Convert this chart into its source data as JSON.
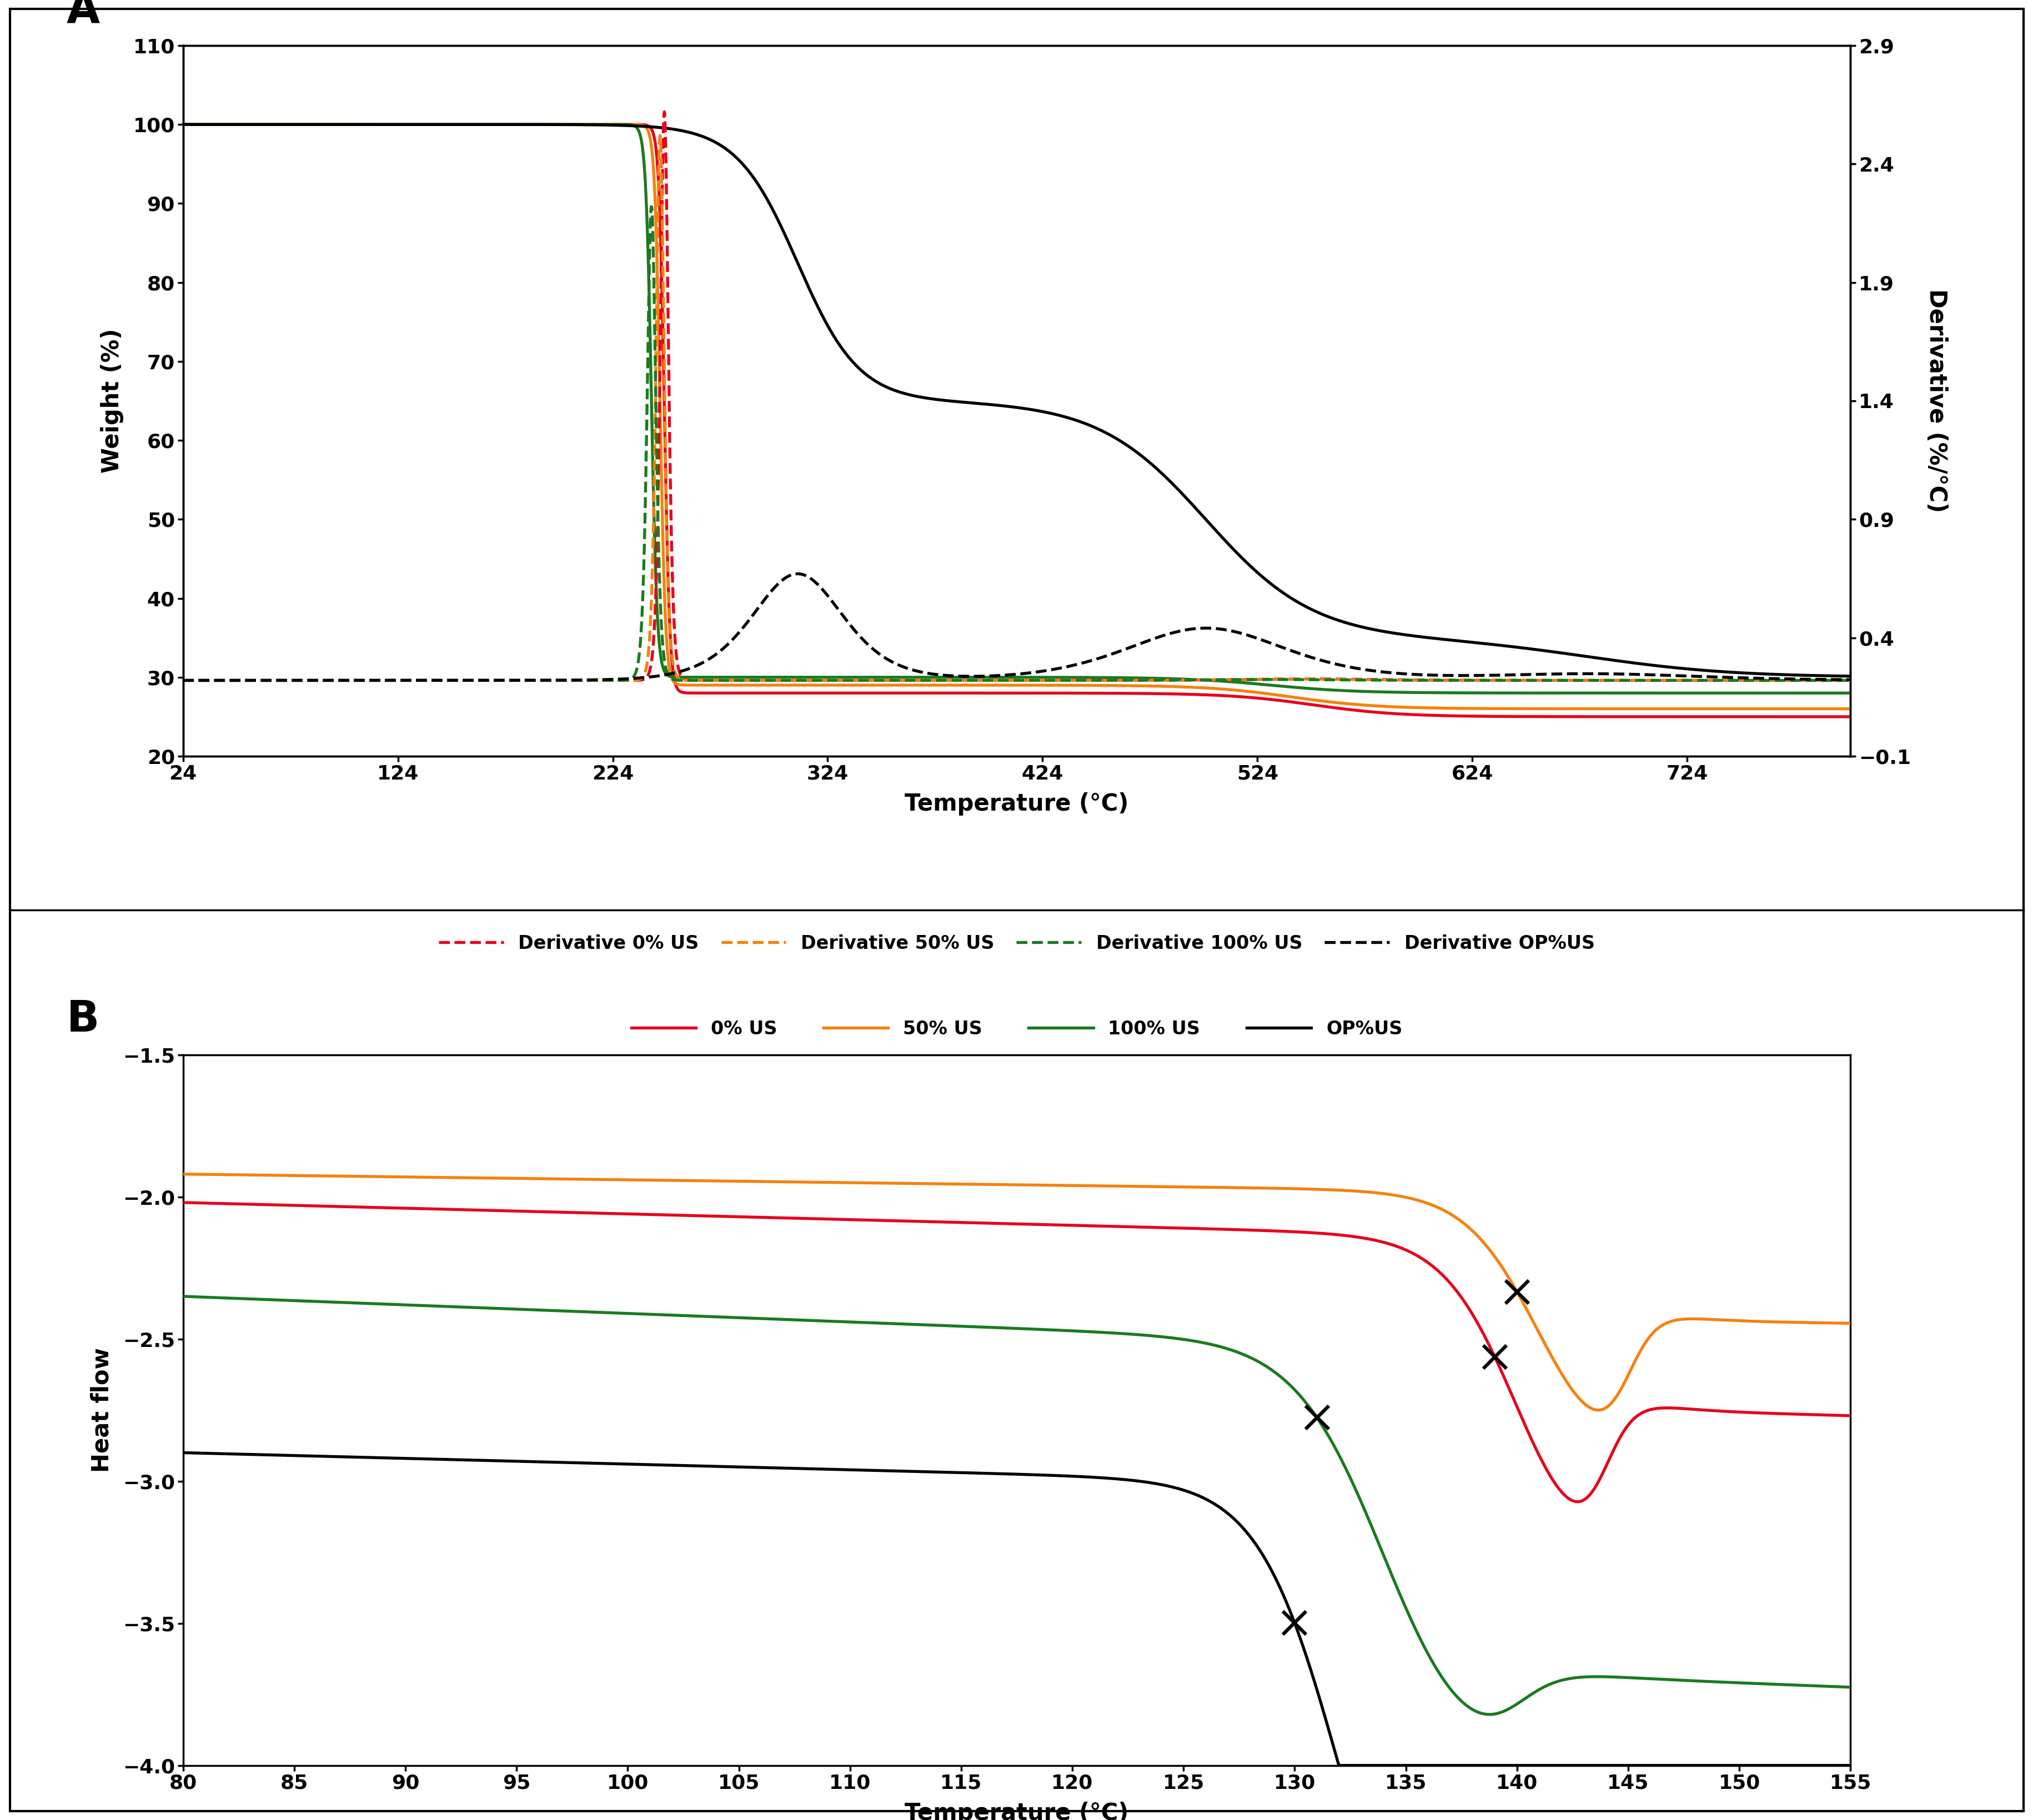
{
  "panel_A": {
    "xlabel": "Temperature (°C)",
    "ylabel_left": "Weight (%)",
    "ylabel_right": "Derivative (%/°C)",
    "xlim": [
      24,
      800
    ],
    "ylim_left": [
      20,
      110
    ],
    "ylim_right": [
      -0.1,
      2.9
    ],
    "xticks": [
      24,
      124,
      224,
      324,
      424,
      524,
      624,
      724
    ],
    "yticks_left": [
      20,
      30,
      40,
      50,
      60,
      70,
      80,
      90,
      100,
      110
    ],
    "yticks_right": [
      -0.1,
      0.4,
      0.9,
      1.4,
      1.9,
      2.4,
      2.9
    ],
    "colors": {
      "red": "#e8001c",
      "orange": "#f5820d",
      "green": "#1a7a1e",
      "black": "#000000"
    }
  },
  "panel_B": {
    "xlabel": "Temperature (°C)",
    "ylabel": "Heat flow",
    "xlim": [
      80,
      155
    ],
    "ylim": [
      -4.0,
      -1.5
    ],
    "xticks": [
      80,
      85,
      90,
      95,
      100,
      105,
      110,
      115,
      120,
      125,
      130,
      135,
      140,
      145,
      150,
      155
    ],
    "yticks": [
      -4.0,
      -3.5,
      -3.0,
      -2.5,
      -2.0,
      -1.5
    ],
    "colors": {
      "red": "#e8001c",
      "orange": "#f5820d",
      "green": "#1a7a1e",
      "black": "#000000"
    }
  }
}
